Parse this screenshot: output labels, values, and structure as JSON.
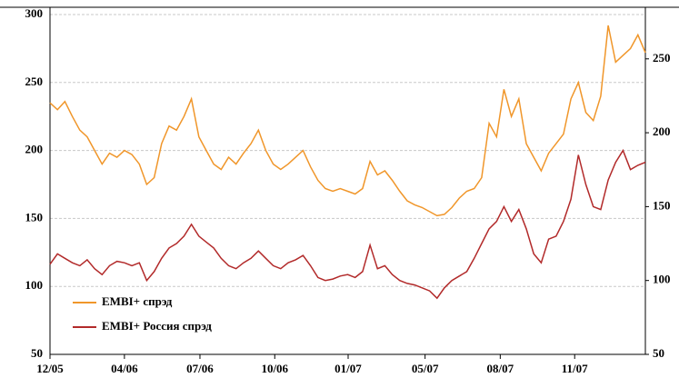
{
  "chart_data": {
    "type": "line",
    "x": [
      0,
      1,
      2,
      3,
      4,
      5,
      6,
      7,
      8,
      9,
      10,
      11,
      12,
      13,
      14,
      15,
      16,
      17,
      18,
      19,
      20,
      21,
      22,
      23,
      24,
      25,
      26,
      27,
      28,
      29,
      30,
      31,
      32,
      33,
      34,
      35,
      36,
      37,
      38,
      39,
      40,
      41,
      42,
      43,
      44,
      45,
      46,
      47,
      48,
      49,
      50,
      51,
      52,
      53,
      54,
      55,
      56,
      57,
      58,
      59,
      60,
      61,
      62,
      63,
      64,
      65,
      66,
      67,
      68,
      69,
      70,
      71,
      72,
      73,
      74,
      75,
      76,
      77,
      78,
      79,
      80
    ],
    "xlim": [
      0,
      80
    ],
    "xticks": [
      {
        "value": 0,
        "label": "12/05"
      },
      {
        "value": 10,
        "label": "04/06"
      },
      {
        "value": 20.15,
        "label": "07/06"
      },
      {
        "value": 30.2,
        "label": "10/06"
      },
      {
        "value": 40.06,
        "label": "01/07"
      },
      {
        "value": 50.4,
        "label": "05/07"
      },
      {
        "value": 60.5,
        "label": "08/07"
      },
      {
        "value": 70.5,
        "label": "11/07"
      }
    ],
    "ylim": [
      50,
      300
    ],
    "yticks": [
      50,
      100,
      150,
      200,
      250,
      300
    ],
    "y2lim": [
      50,
      280
    ],
    "y2ticks": [
      50,
      100,
      150,
      200,
      250
    ],
    "grid": true,
    "legend": "lower left",
    "series": [
      {
        "name": "EMBI+ спрэд",
        "color": "#f0962a",
        "values": [
          235,
          230,
          236,
          225,
          215,
          210,
          200,
          190,
          198,
          195,
          200,
          197,
          190,
          175,
          180,
          205,
          218,
          215,
          225,
          238,
          210,
          200,
          190,
          186,
          195,
          190,
          198,
          205,
          215,
          200,
          190,
          186,
          190,
          195,
          200,
          188,
          178,
          172,
          170,
          172,
          170,
          168,
          172,
          192,
          182,
          185,
          178,
          170,
          163,
          160,
          158,
          155,
          152,
          153,
          158,
          165,
          170,
          172,
          180,
          220,
          210,
          245,
          225,
          238,
          205,
          195,
          185,
          198,
          205,
          212,
          238,
          250,
          228,
          222,
          240,
          292,
          265,
          270,
          275,
          285,
          272
        ]
      },
      {
        "name": "EMBI+ Россия спрэд",
        "color": "#b22a2a",
        "axis": "y2",
        "values": [
          111,
          118,
          115,
          112,
          110,
          114,
          108,
          104,
          110,
          113,
          112,
          110,
          112,
          100,
          106,
          115,
          122,
          125,
          130,
          138,
          130,
          126,
          122,
          115,
          110,
          108,
          112,
          115,
          120,
          115,
          110,
          108,
          112,
          114,
          117,
          110,
          102,
          100,
          101,
          103,
          104,
          102,
          106,
          124,
          108,
          110,
          104,
          100,
          98,
          97,
          95,
          93,
          88,
          95,
          100,
          103,
          106,
          115,
          125,
          135,
          140,
          150,
          140,
          148,
          135,
          118,
          112,
          128,
          130,
          140,
          155,
          185,
          165,
          150,
          148,
          168,
          180,
          188,
          175,
          178,
          180
        ]
      }
    ]
  }
}
